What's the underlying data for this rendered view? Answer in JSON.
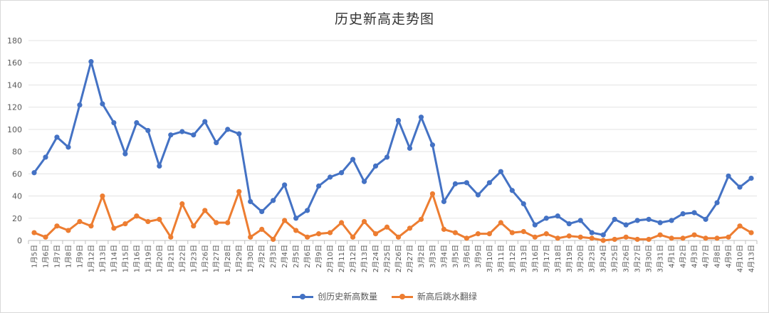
{
  "chart_data": {
    "type": "line",
    "title": "历史新高走势图",
    "categories": [
      "1月5日",
      "1月6日",
      "1月7日",
      "1月8日",
      "1月9日",
      "1月12日",
      "1月13日",
      "1月14日",
      "1月15日",
      "1月16日",
      "1月19日",
      "1月20日",
      "1月21日",
      "1月22日",
      "1月23日",
      "1月26日",
      "1月27日",
      "1月28日",
      "1月29日",
      "1月30日",
      "2月2日",
      "2月3日",
      "2月4日",
      "2月5日",
      "2月6日",
      "2月9日",
      "2月10日",
      "2月11日",
      "2月12日",
      "2月13日",
      "2月24日",
      "2月25日",
      "2月26日",
      "2月27日",
      "3月2日",
      "3月3日",
      "3月4日",
      "3月5日",
      "3月6日",
      "3月9日",
      "3月10日",
      "3月11日",
      "3月12日",
      "3月13日",
      "3月16日",
      "3月17日",
      "3月18日",
      "3月19日",
      "3月20日",
      "3月23日",
      "3月24日",
      "3月25日",
      "3月26日",
      "3月27日",
      "3月30日",
      "3月31日",
      "4月1日",
      "4月2日",
      "4月3日",
      "4月7日",
      "4月8日",
      "4月9日",
      "4月10日",
      "4月13日"
    ],
    "ylim": [
      0,
      180
    ],
    "yticks": [
      0,
      20,
      40,
      60,
      80,
      100,
      120,
      140,
      160,
      180
    ],
    "grid": true,
    "legend_position": "bottom",
    "series": [
      {
        "name": "创历史新高数量",
        "color": "#4472c4",
        "values": [
          61,
          75,
          93,
          84,
          122,
          161,
          123,
          106,
          78,
          106,
          99,
          67,
          95,
          98,
          95,
          107,
          88,
          100,
          96,
          35,
          26,
          36,
          50,
          20,
          27,
          49,
          57,
          61,
          73,
          53,
          67,
          75,
          108,
          83,
          111,
          86,
          35,
          51,
          52,
          41,
          52,
          62,
          45,
          33,
          14,
          20,
          22,
          15,
          18,
          7,
          5,
          19,
          14,
          18,
          19,
          16,
          18,
          24,
          25,
          19,
          34,
          58,
          48,
          56
        ]
      },
      {
        "name": "新高后跳水翻绿",
        "color": "#ed7d31",
        "values": [
          7,
          3,
          13,
          9,
          17,
          13,
          40,
          11,
          15,
          22,
          17,
          19,
          3,
          33,
          13,
          27,
          16,
          16,
          44,
          3,
          10,
          1,
          18,
          9,
          3,
          6,
          7,
          16,
          3,
          17,
          6,
          12,
          3,
          11,
          19,
          42,
          10,
          7,
          2,
          6,
          6,
          16,
          7,
          8,
          3,
          6,
          2,
          4,
          3,
          2,
          0,
          1,
          3,
          1,
          1,
          5,
          2,
          2,
          5,
          2,
          2,
          3,
          13,
          7
        ]
      }
    ]
  }
}
